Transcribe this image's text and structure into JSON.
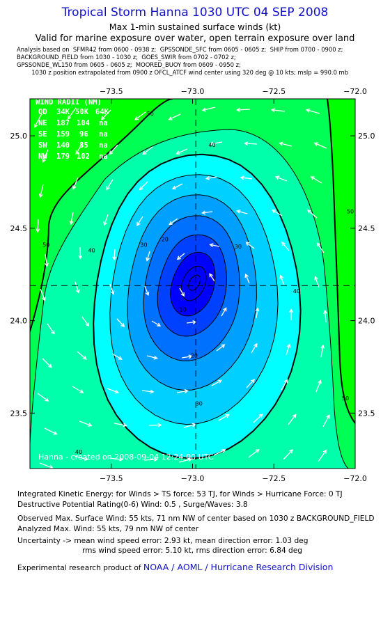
{
  "header": {
    "title": "Tropical Storm Hanna 1030 UTC 04 SEP 2008",
    "subtitle": "Max 1-min sustained surface winds (kt)",
    "valid": "Valid for marine exposure over water, open terrain exposure over land",
    "analysis_lines": [
      "Analysis based on  SFMR42 from 0600 - 0938 z;  GPSSONDE_SFC from 0605 - 0605 z;  SHIP from 0700 - 0900 z;",
      "BACKGROUND_FIELD from 1030 - 1030 z;  GOES_SWIR from 0702 - 0702 z;",
      "GPSSONDE_WL150 from 0605 - 0605 z;  MOORED_BUOY from 0609 - 0950 z;",
      "        1030 z position extrapolated from 0900 z OFCL_ATCF wind center using 320 deg @ 10 kts; mslp = 990.0 mb"
    ]
  },
  "chart_data": {
    "type": "contour",
    "xlim": [
      -74.0,
      -72.0
    ],
    "ylim": [
      23.2,
      25.2
    ],
    "x_ticks": [
      -73.5,
      -73.0,
      -72.5,
      -72.0
    ],
    "x_tick_labels": [
      "−73.5",
      "−73.0",
      "−72.5",
      "−72.0"
    ],
    "y_ticks": [
      23.5,
      24.0,
      24.5,
      25.0
    ],
    "y_tick_labels": [
      "23.5",
      "24.0",
      "24.5",
      "25.0"
    ],
    "center": {
      "lon": -72.98,
      "lat": 24.19
    },
    "contour_levels": [
      10,
      15,
      20,
      25,
      30,
      34,
      40,
      45,
      50
    ],
    "bold_levels": [
      34,
      50
    ],
    "contour_labels": [
      {
        "text": "50",
        "lon": -73.26,
        "lat": 25.11
      },
      {
        "text": "40",
        "lon": -72.88,
        "lat": 24.94
      },
      {
        "text": "50",
        "lon": -72.03,
        "lat": 24.58
      },
      {
        "text": "50",
        "lon": -73.9,
        "lat": 24.4
      },
      {
        "text": "40",
        "lon": -73.62,
        "lat": 24.37
      },
      {
        "text": "30",
        "lon": -73.3,
        "lat": 24.4
      },
      {
        "text": "20",
        "lon": -73.17,
        "lat": 24.43
      },
      {
        "text": "30",
        "lon": -72.72,
        "lat": 24.39
      },
      {
        "text": "40",
        "lon": -72.36,
        "lat": 24.15
      },
      {
        "text": "10",
        "lon": -73.06,
        "lat": 24.05
      },
      {
        "text": "20",
        "lon": -72.99,
        "lat": 23.8
      },
      {
        "text": "30",
        "lon": -72.96,
        "lat": 23.54
      },
      {
        "text": "40",
        "lon": -73.7,
        "lat": 23.28
      },
      {
        "text": "50",
        "lon": -72.06,
        "lat": 23.57
      }
    ],
    "wind_radii": {
      "title": "WIND RADII (NM)",
      "header": [
        "QD",
        "34K",
        "50K",
        "64K"
      ],
      "rows": [
        [
          "NE",
          "187",
          "104",
          "na"
        ],
        [
          "SE",
          "159",
          "96",
          "na"
        ],
        [
          "SW",
          "140",
          "85",
          "na"
        ],
        [
          "NW",
          "179",
          "102",
          "na"
        ]
      ]
    },
    "credit": "Hanna - created on 2008-09-04 12:24:00 UTC",
    "colors": {
      "c10": "#0000ff",
      "c15": "#0040ff",
      "c20": "#0070ff",
      "c25": "#00a0ff",
      "c30": "#00d0ff",
      "c34": "#00ffff",
      "c40": "#00ffaa",
      "c45": "#00ff55",
      "c50": "#00ff00"
    }
  },
  "footer": {
    "ike": "Integrated Kinetic Energy:  for Winds > TS force: 53 TJ,  for Winds > Hurricane Force: 0 TJ",
    "dpr": "Destructive Potential Rating(0-6)   Wind: 0.5 , Surge/Waves: 3.8",
    "obs_max": "Observed Max. Surface Wind: 55 kts, 71 nm NW of center based on 1030 z BACKGROUND_FIELD",
    "ana_max": "Analyzed Max. Wind: 55 kts, 79 nm NW of center",
    "unc1": "Uncertainty -> mean wind speed error: 2.93 kt,   mean direction error: 1.03 deg",
    "unc2": "rms wind speed error: 5.10 kt,   rms direction error: 6.84 deg",
    "credit_prefix": "Experimental research product of ",
    "credit_org": "NOAA / AOML / Hurricane Research Division"
  }
}
